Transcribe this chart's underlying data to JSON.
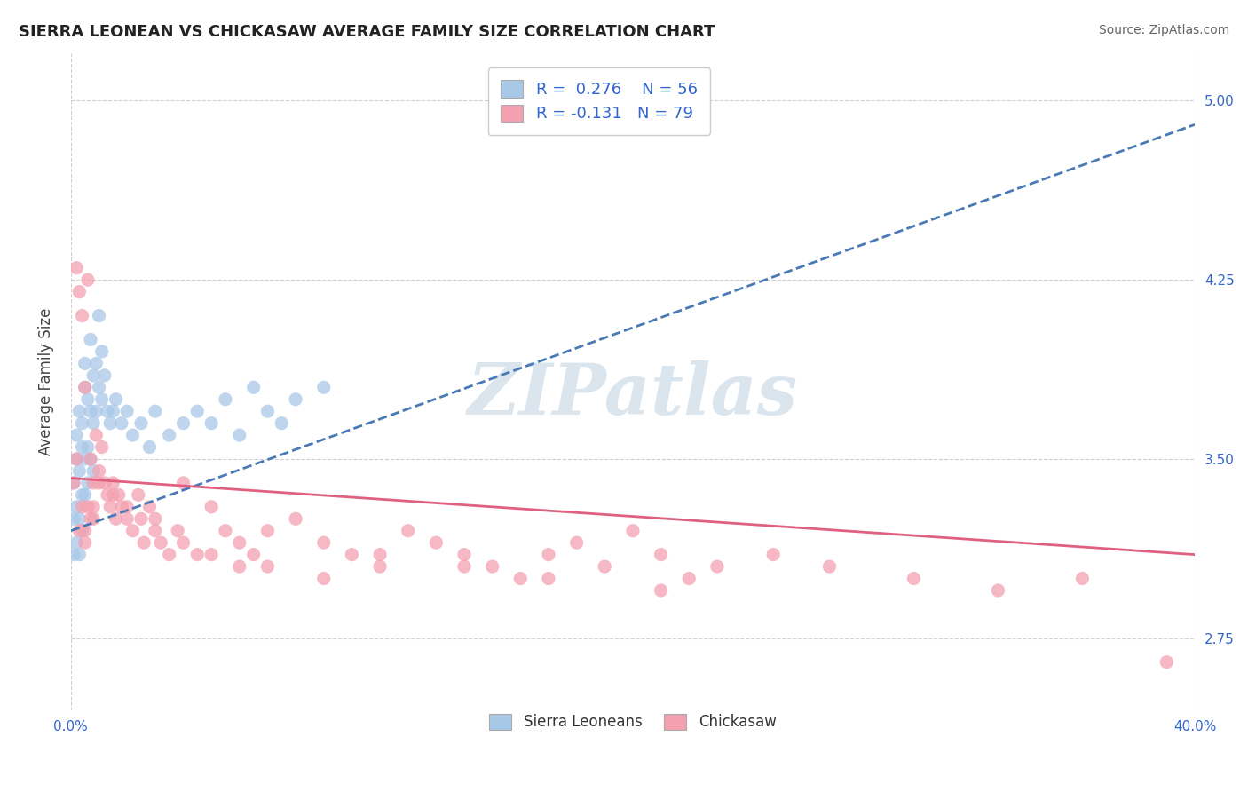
{
  "title": "SIERRA LEONEAN VS CHICKASAW AVERAGE FAMILY SIZE CORRELATION CHART",
  "source": "Source: ZipAtlas.com",
  "ylabel": "Average Family Size",
  "xlim": [
    0.0,
    0.4
  ],
  "ylim": [
    2.45,
    5.2
  ],
  "yticks": [
    2.75,
    3.5,
    4.25,
    5.0
  ],
  "xticks": [
    0.0,
    0.1,
    0.2,
    0.3,
    0.4
  ],
  "xtick_labels": [
    "0.0%",
    "",
    "",
    "",
    "40.0%"
  ],
  "background_color": "#ffffff",
  "grid_color": "#d0d0d0",
  "watermark_text": "ZIPatlas",
  "blue_color": "#a8c8e8",
  "pink_color": "#f4a0b0",
  "line_blue_color": "#4a7ab5",
  "line_pink_color": "#e06080",
  "label_color": "#3366cc",
  "tick_label_color": "#3366cc",
  "sierra_x": [
    0.001,
    0.001,
    0.001,
    0.002,
    0.002,
    0.002,
    0.002,
    0.003,
    0.003,
    0.003,
    0.003,
    0.004,
    0.004,
    0.004,
    0.004,
    0.005,
    0.005,
    0.005,
    0.005,
    0.006,
    0.006,
    0.006,
    0.007,
    0.007,
    0.007,
    0.008,
    0.008,
    0.008,
    0.009,
    0.009,
    0.01,
    0.01,
    0.011,
    0.011,
    0.012,
    0.013,
    0.014,
    0.015,
    0.016,
    0.018,
    0.02,
    0.022,
    0.025,
    0.028,
    0.03,
    0.035,
    0.04,
    0.045,
    0.05,
    0.055,
    0.06,
    0.065,
    0.07,
    0.075,
    0.08,
    0.09
  ],
  "sierra_y": [
    3.25,
    3.1,
    3.4,
    3.5,
    3.3,
    3.15,
    3.6,
    3.45,
    3.25,
    3.1,
    3.7,
    3.55,
    3.35,
    3.2,
    3.65,
    3.8,
    3.5,
    3.35,
    3.9,
    3.75,
    3.55,
    3.4,
    4.0,
    3.7,
    3.5,
    3.85,
    3.65,
    3.45,
    3.9,
    3.7,
    4.1,
    3.8,
    3.95,
    3.75,
    3.85,
    3.7,
    3.65,
    3.7,
    3.75,
    3.65,
    3.7,
    3.6,
    3.65,
    3.55,
    3.7,
    3.6,
    3.65,
    3.7,
    3.65,
    3.75,
    3.6,
    3.8,
    3.7,
    3.65,
    3.75,
    3.8
  ],
  "chickasaw_x": [
    0.001,
    0.002,
    0.002,
    0.003,
    0.004,
    0.004,
    0.005,
    0.005,
    0.006,
    0.007,
    0.007,
    0.008,
    0.008,
    0.009,
    0.01,
    0.011,
    0.012,
    0.013,
    0.014,
    0.015,
    0.016,
    0.017,
    0.018,
    0.02,
    0.022,
    0.024,
    0.026,
    0.028,
    0.03,
    0.032,
    0.035,
    0.038,
    0.04,
    0.045,
    0.05,
    0.055,
    0.06,
    0.065,
    0.07,
    0.08,
    0.09,
    0.1,
    0.11,
    0.12,
    0.13,
    0.14,
    0.15,
    0.16,
    0.17,
    0.18,
    0.19,
    0.2,
    0.21,
    0.22,
    0.23,
    0.25,
    0.27,
    0.3,
    0.33,
    0.36,
    0.003,
    0.005,
    0.006,
    0.008,
    0.01,
    0.015,
    0.02,
    0.025,
    0.03,
    0.04,
    0.05,
    0.06,
    0.07,
    0.09,
    0.11,
    0.14,
    0.17,
    0.21,
    0.39
  ],
  "chickasaw_y": [
    3.4,
    4.3,
    3.5,
    4.2,
    4.1,
    3.3,
    3.8,
    3.2,
    4.25,
    3.5,
    3.25,
    3.4,
    3.3,
    3.6,
    3.45,
    3.55,
    3.4,
    3.35,
    3.3,
    3.4,
    3.25,
    3.35,
    3.3,
    3.25,
    3.2,
    3.35,
    3.15,
    3.3,
    3.25,
    3.15,
    3.1,
    3.2,
    3.4,
    3.1,
    3.3,
    3.2,
    3.15,
    3.1,
    3.05,
    3.25,
    3.0,
    3.1,
    3.05,
    3.2,
    3.15,
    3.1,
    3.05,
    3.0,
    3.1,
    3.15,
    3.05,
    3.2,
    3.1,
    3.0,
    3.05,
    3.1,
    3.05,
    3.0,
    2.95,
    3.0,
    3.2,
    3.15,
    3.3,
    3.25,
    3.4,
    3.35,
    3.3,
    3.25,
    3.2,
    3.15,
    3.1,
    3.05,
    3.2,
    3.15,
    3.1,
    3.05,
    3.0,
    2.95,
    2.65
  ],
  "blue_line_x0": 0.0,
  "blue_line_x1": 0.4,
  "blue_line_y0": 3.2,
  "blue_line_y1": 4.9,
  "pink_line_x0": 0.0,
  "pink_line_x1": 0.4,
  "pink_line_y0": 3.42,
  "pink_line_y1": 3.1
}
